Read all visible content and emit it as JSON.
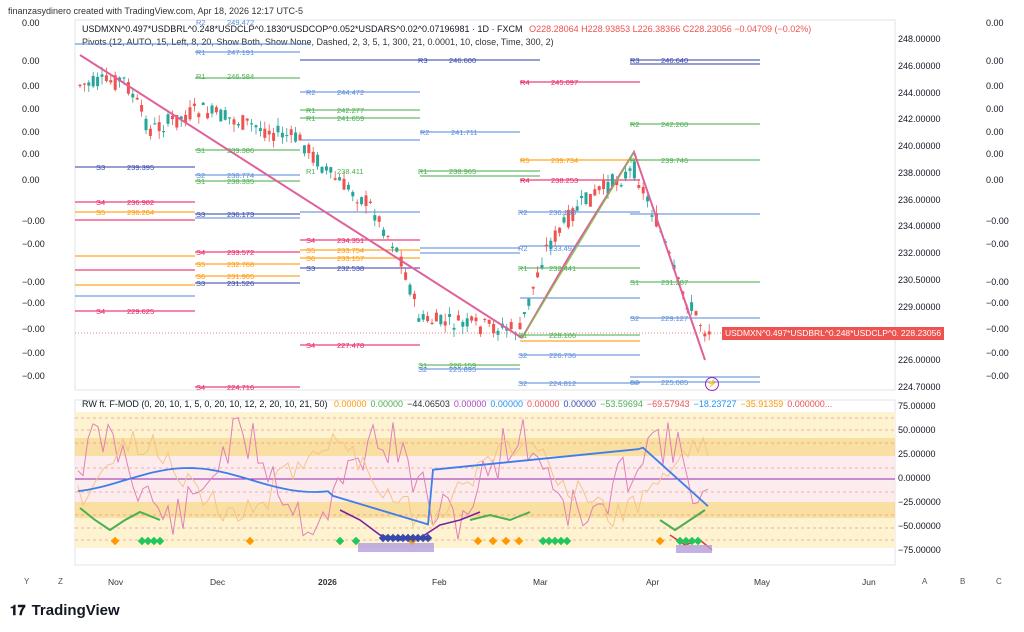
{
  "header": {
    "created_by": "finanzasydinero created with TradingView.com, Apr 18, 2026 12:17 UTC-5",
    "symbol_line": "USDMXN^0.497*USDBRL^0.248*USDCLP^0.1830*USDCOP^0.052*USDARS^0.02^0.07196981 · 1D · FXCM",
    "ohlc": "O228.28064 H228.93853 L226.38366 C228.23056 −0.04709 (−0.02%)",
    "pivots": "Pivots (12, AUTO, 15, Left, 8, 20, Show Both, Show None, Dashed, 2, 3, 5, 1, 300, 21, 0.0001, 10, close, Time, 300, 2)",
    "oscillator": "RW ft. F-MOD (0, 20, 10, 1, 5, 0, 20, 10, 12, 2, 20, 10, 21, 50)",
    "osc_values": [
      "0.00000",
      "0.00000",
      "−44.06503",
      "0.00000",
      "0.00000",
      "0.00000",
      "0.00000",
      "−53.59694",
      "−69.57943",
      "−18.23727",
      "−35.91359",
      "0.000000..."
    ]
  },
  "price_axis": [
    "248.00000",
    "246.00000",
    "244.00000",
    "242.00000",
    "240.00000",
    "238.00000",
    "236.00000",
    "234.00000",
    "232.00000",
    "230.50000",
    "229.00000",
    "227.50000",
    "226.00000",
    "224.70000"
  ],
  "current_price": "228.23056",
  "price_tag_label": "USDMXN^0.497*USDBRL^0.248*USDCLP^0.18...",
  "osc_axis": [
    "75.00000",
    "50.00000",
    "25.00000",
    "0.00000",
    "−25.00000",
    "−50.00000",
    "−75.00000"
  ],
  "time_axis": [
    "Nov",
    "Dec",
    "2026",
    "Feb",
    "Mar",
    "Apr",
    "May",
    "Jun"
  ],
  "left_scale": [
    "0.00",
    "0.00",
    "0.00",
    "0.00",
    "0.00",
    "0.00",
    "0.00",
    "−0.00",
    "−0.00",
    "−0.00",
    "−0.00",
    "−0.00",
    "−0.00",
    "−0.00",
    "−0.00",
    "−0.00",
    "−0.00",
    "−0.00"
  ],
  "right_scale": [
    "0.00",
    "0.00",
    "0.00",
    "0.00",
    "0.00",
    "0.00",
    "0.00",
    "−0.00",
    "−0.00",
    "−0.00",
    "−0.00",
    "−0.00",
    "−0.00",
    "−0.00",
    "−0.00",
    "−0.00",
    "−0.00",
    "−0.00"
  ],
  "bottom_left_letters": [
    "Y",
    "Z"
  ],
  "bottom_right_letters": [
    "A",
    "B",
    "C"
  ],
  "pivot_labels": [
    {
      "t": "R2",
      "v": "249.472",
      "c": "#5b8dd9"
    },
    {
      "t": "R1",
      "v": "247.191",
      "c": "#5b8dd9"
    },
    {
      "t": "R1",
      "v": "246.584",
      "c": "#4caf50"
    },
    {
      "t": "R2",
      "v": "244.472",
      "c": "#5b8dd9"
    },
    {
      "t": "R1",
      "v": "242.277",
      "c": "#4caf50"
    },
    {
      "t": "R1",
      "v": "241.659",
      "c": "#4caf50"
    },
    {
      "t": "R2",
      "v": "241.711",
      "c": "#5b8dd9"
    },
    {
      "t": "R2",
      "v": "242.260",
      "c": "#4caf50"
    },
    {
      "t": "R3",
      "v": "246.600",
      "c": "#3949ab"
    },
    {
      "t": "R3",
      "v": "246.640",
      "c": "#3949ab"
    },
    {
      "t": "R4",
      "v": "245.097",
      "c": "#e91e63"
    },
    {
      "t": "R5",
      "v": "239.734",
      "c": "#ff9800"
    },
    {
      "t": "R4",
      "v": "238.253",
      "c": "#e91e63"
    },
    {
      "t": "S1",
      "v": "239.386",
      "c": "#4caf50"
    },
    {
      "t": "S1",
      "v": "238.335",
      "c": "#4caf50"
    },
    {
      "t": "S2",
      "v": "238.774",
      "c": "#5b8dd9"
    },
    {
      "t": "S3",
      "v": "239.395",
      "c": "#3949ab"
    },
    {
      "t": "S4",
      "v": "236.982",
      "c": "#e91e63"
    },
    {
      "t": "S5",
      "v": "236.264",
      "c": "#ff9800"
    },
    {
      "t": "S3",
      "v": "236.173",
      "c": "#3949ab"
    },
    {
      "t": "S4",
      "v": "233.572",
      "c": "#e91e63"
    },
    {
      "t": "S5",
      "v": "232.768",
      "c": "#ff9800"
    },
    {
      "t": "S6",
      "v": "231.905",
      "c": "#ff9800"
    },
    {
      "t": "S3",
      "v": "231.526",
      "c": "#3949ab"
    },
    {
      "t": "S4",
      "v": "229.625",
      "c": "#e91e63"
    },
    {
      "t": "S4",
      "v": "234.351",
      "c": "#e91e63"
    },
    {
      "t": "S5",
      "v": "233.754",
      "c": "#ff9800"
    },
    {
      "t": "S6",
      "v": "233.157",
      "c": "#ff9800"
    },
    {
      "t": "S3",
      "v": "232.538",
      "c": "#3949ab"
    },
    {
      "t": "S4",
      "v": "227.478",
      "c": "#e91e63"
    },
    {
      "t": "S4",
      "v": "224.716",
      "c": "#e91e63"
    },
    {
      "t": "S1",
      "v": "226.159",
      "c": "#4caf50"
    },
    {
      "t": "S2",
      "v": "225.895",
      "c": "#5b8dd9"
    },
    {
      "t": "S2",
      "v": "226.736",
      "c": "#5b8dd9"
    },
    {
      "t": "S2",
      "v": "224.812",
      "c": "#5b8dd9"
    },
    {
      "t": "S2",
      "v": "229.127",
      "c": "#5b8dd9"
    },
    {
      "t": "S2",
      "v": "225.085",
      "c": "#5b8dd9"
    },
    {
      "t": "S1",
      "v": "228.106",
      "c": "#4caf50"
    },
    {
      "t": "S1",
      "v": "231.287",
      "c": "#4caf50"
    },
    {
      "t": "R1",
      "v": "232.441",
      "c": "#4caf50"
    },
    {
      "t": "R2",
      "v": "233.497",
      "c": "#5b8dd9"
    },
    {
      "t": "R2",
      "v": "236.198",
      "c": "#5b8dd9"
    },
    {
      "t": "R1",
      "v": "238.411",
      "c": "#4caf50"
    },
    {
      "t": "R1",
      "v": "238.965",
      "c": "#4caf50"
    },
    {
      "t": "P",
      "v": "239.746",
      "c": "#4caf50"
    }
  ],
  "brand": "TradingView"
}
